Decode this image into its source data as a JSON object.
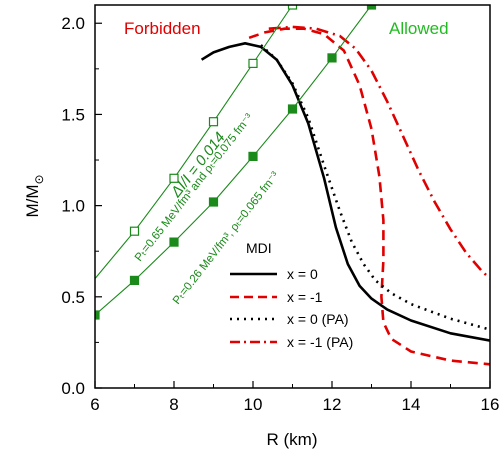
{
  "chart_data": {
    "type": "line",
    "xlabel": "R (km)",
    "ylabel_main": "M/M",
    "ylabel_sub": "⊙",
    "xlim": [
      6,
      16
    ],
    "ylim": [
      0,
      2.1
    ],
    "xticks": [
      6,
      8,
      10,
      12,
      14,
      16
    ],
    "xtick_labels": [
      "6",
      "8",
      "10",
      "12",
      "14",
      "16"
    ],
    "yticks": [
      0.0,
      0.5,
      1.0,
      1.5,
      2.0
    ],
    "ytick_labels": [
      "0.0",
      "0.5",
      "1.0",
      "1.5",
      "2.0"
    ],
    "grid": false,
    "legend": {
      "title": "MDI",
      "placement": "bottom-right",
      "entries": [
        "x = 0",
        "x = -1",
        "x = 0  (PA)",
        "x = -1 (PA)"
      ]
    },
    "region_labels": {
      "forbidden": "Forbidden",
      "allowed": "Allowed"
    },
    "annotations": {
      "delta": "ΔI/I = 0.014",
      "upper": "Pₜ=0.65 MeV/fm³ and ρₜ=0.075 fm⁻³",
      "lower": "Pₜ=0.26 MeV/fm³, ρₜ=0.065 fm⁻³"
    },
    "series": [
      {
        "style": "solid",
        "color": "#000000",
        "x": [
          8.7,
          9.0,
          9.4,
          9.8,
          10.2,
          10.6,
          11.0,
          11.4,
          11.8,
          12.1,
          12.4,
          12.7,
          13.0,
          13.4,
          14.0,
          15.0,
          16.0
        ],
        "y": [
          1.8,
          1.84,
          1.87,
          1.89,
          1.87,
          1.8,
          1.66,
          1.45,
          1.15,
          0.88,
          0.68,
          0.56,
          0.49,
          0.43,
          0.37,
          0.3,
          0.26
        ]
      },
      {
        "style": "dashed",
        "color": "#e00000",
        "x": [
          9.9,
          10.3,
          10.8,
          11.3,
          11.8,
          12.3,
          12.7,
          13.0,
          13.2,
          13.3,
          13.3,
          13.25,
          13.3,
          13.5,
          14.0,
          15.0,
          16.0
        ],
        "y": [
          1.92,
          1.95,
          1.97,
          1.97,
          1.94,
          1.85,
          1.66,
          1.42,
          1.16,
          0.92,
          0.7,
          0.5,
          0.36,
          0.27,
          0.2,
          0.15,
          0.13
        ]
      },
      {
        "style": "dotted",
        "color": "#000000",
        "x": [
          10.2,
          10.6,
          11.0,
          11.4,
          11.8,
          12.2,
          12.5,
          12.8,
          13.1,
          13.5,
          14.0,
          15.0,
          16.0
        ],
        "y": [
          1.88,
          1.8,
          1.67,
          1.48,
          1.22,
          0.97,
          0.8,
          0.68,
          0.59,
          0.52,
          0.46,
          0.38,
          0.32
        ]
      },
      {
        "style": "dashdot",
        "color": "#e00000",
        "x": [
          10.4,
          11.0,
          11.6,
          12.2,
          12.6,
          13.0,
          13.4,
          13.8,
          14.2,
          14.6,
          15.0,
          15.4,
          15.8,
          16.0
        ],
        "y": [
          1.97,
          1.98,
          1.97,
          1.93,
          1.86,
          1.74,
          1.57,
          1.38,
          1.19,
          1.02,
          0.87,
          0.74,
          0.64,
          0.6
        ]
      },
      {
        "style": "crust-upper",
        "color": "#1a8a1a",
        "marker": "open-square",
        "x": [
          6.0,
          7.0,
          8.0,
          9.0,
          10.0,
          11.0,
          12.0
        ],
        "y": [
          0.6,
          0.86,
          1.15,
          1.46,
          1.78,
          2.1,
          2.45
        ],
        "markers_x": [
          7.0,
          8.0,
          9.0,
          10.0,
          11.0
        ],
        "markers_y": [
          0.86,
          1.15,
          1.46,
          1.78,
          2.1
        ]
      },
      {
        "style": "crust-lower",
        "color": "#1a8a1a",
        "marker": "filled-square",
        "x": [
          6.0,
          7.0,
          8.0,
          9.0,
          10.0,
          11.0,
          12.0,
          13.0,
          14.0
        ],
        "y": [
          0.4,
          0.59,
          0.8,
          1.02,
          1.27,
          1.53,
          1.81,
          2.1,
          2.4
        ],
        "markers_x": [
          6.0,
          7.0,
          8.0,
          9.0,
          10.0,
          11.0,
          12.0,
          13.0
        ],
        "markers_y": [
          0.4,
          0.59,
          0.8,
          1.02,
          1.27,
          1.53,
          1.81,
          2.1
        ]
      }
    ]
  }
}
